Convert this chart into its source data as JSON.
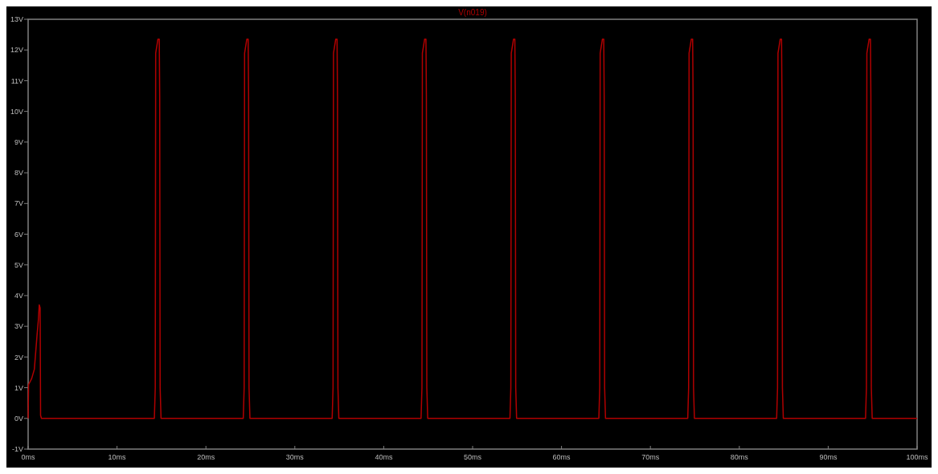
{
  "chart_data": {
    "type": "line",
    "title": "V(n019)",
    "grid": false,
    "marker": "none",
    "line_style": "solid",
    "xlim": [
      0,
      100
    ],
    "ylim": [
      -1,
      13
    ],
    "xticks": [
      {
        "value": 0,
        "label": "0ms"
      },
      {
        "value": 10,
        "label": "10ms"
      },
      {
        "value": 20,
        "label": "20ms"
      },
      {
        "value": 30,
        "label": "30ms"
      },
      {
        "value": 40,
        "label": "40ms"
      },
      {
        "value": 50,
        "label": "50ms"
      },
      {
        "value": 60,
        "label": "60ms"
      },
      {
        "value": 70,
        "label": "70ms"
      },
      {
        "value": 80,
        "label": "80ms"
      },
      {
        "value": 90,
        "label": "90ms"
      },
      {
        "value": 100,
        "label": "100ms"
      }
    ],
    "yticks": [
      {
        "value": -1,
        "label": "-1V"
      },
      {
        "value": 0,
        "label": "0V"
      },
      {
        "value": 1,
        "label": "1V"
      },
      {
        "value": 2,
        "label": "2V"
      },
      {
        "value": 3,
        "label": "3V"
      },
      {
        "value": 4,
        "label": "4V"
      },
      {
        "value": 5,
        "label": "5V"
      },
      {
        "value": 6,
        "label": "6V"
      },
      {
        "value": 7,
        "label": "7V"
      },
      {
        "value": 8,
        "label": "8V"
      },
      {
        "value": 9,
        "label": "9V"
      },
      {
        "value": 10,
        "label": "10V"
      },
      {
        "value": 11,
        "label": "11V"
      },
      {
        "value": 12,
        "label": "12V"
      },
      {
        "value": 13,
        "label": "13V"
      }
    ],
    "series": [
      {
        "color": "#b00000",
        "x": [
          0,
          0.05,
          0.4,
          0.7,
          1.0,
          1.15,
          1.25,
          1.35,
          1.4,
          1.5,
          14.2,
          14.3,
          14.35,
          14.6,
          14.75,
          14.8,
          14.85,
          14.95,
          24.2,
          24.3,
          24.35,
          24.6,
          24.75,
          24.8,
          24.85,
          24.95,
          34.2,
          34.3,
          34.35,
          34.6,
          34.75,
          34.8,
          34.85,
          34.95,
          44.2,
          44.3,
          44.35,
          44.6,
          44.75,
          44.8,
          44.85,
          44.95,
          54.2,
          54.3,
          54.35,
          54.6,
          54.75,
          54.8,
          54.85,
          54.95,
          64.2,
          64.3,
          64.35,
          64.6,
          64.75,
          64.8,
          64.85,
          64.95,
          74.2,
          74.3,
          74.35,
          74.6,
          74.75,
          74.8,
          74.85,
          74.95,
          84.2,
          84.3,
          84.35,
          84.6,
          84.75,
          84.8,
          84.85,
          84.95,
          94.2,
          94.3,
          94.35,
          94.6,
          94.75,
          94.8,
          94.85,
          94.95,
          100
        ],
        "values": [
          0,
          1.1,
          1.3,
          1.6,
          2.7,
          3.2,
          3.7,
          3.6,
          0.1,
          0,
          0,
          1,
          11.9,
          12.35,
          12.35,
          10.5,
          1,
          0,
          0,
          1,
          11.9,
          12.35,
          12.35,
          10.5,
          1,
          0,
          0,
          1,
          11.9,
          12.35,
          12.35,
          10.5,
          1,
          0,
          0,
          1,
          11.9,
          12.35,
          12.35,
          10.5,
          1,
          0,
          0,
          1,
          11.9,
          12.35,
          12.35,
          10.5,
          1,
          0,
          0,
          1,
          11.9,
          12.35,
          12.35,
          10.5,
          1,
          0,
          0,
          1,
          11.9,
          12.35,
          12.35,
          10.5,
          1,
          0,
          0,
          1,
          11.9,
          12.35,
          12.35,
          10.5,
          1,
          0,
          0,
          1,
          11.9,
          12.35,
          12.35,
          10.5,
          1,
          0,
          0
        ]
      }
    ]
  }
}
